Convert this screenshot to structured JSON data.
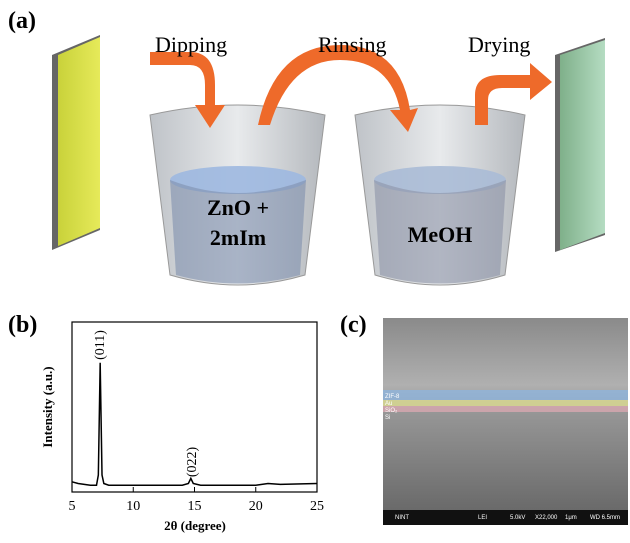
{
  "panel_a": {
    "label": "(a)",
    "steps": [
      "Dipping",
      "Rinsing",
      "Drying"
    ],
    "beaker_1_lines": [
      "ZnO +",
      "2mIm"
    ],
    "beaker_2_label": "MeOH"
  },
  "chart_data": {
    "type": "line",
    "panel_label": "(b)",
    "xlabel": "2θ (degree)",
    "ylabel": "Intensity (a.u.)",
    "x": [
      5,
      5.5,
      6,
      6.5,
      7,
      7.15,
      7.3,
      7.45,
      7.6,
      8,
      9,
      10,
      12,
      14,
      14.5,
      14.7,
      14.9,
      15.5,
      18,
      20,
      21,
      22,
      25
    ],
    "values": [
      6,
      5,
      4.5,
      4,
      4,
      10,
      76,
      10,
      5,
      4,
      4,
      4,
      4,
      4,
      5,
      8,
      5,
      4,
      4,
      4,
      5,
      4.5,
      5
    ],
    "color": "#000000",
    "xlim": [
      5,
      25
    ],
    "xticks": [
      5,
      10,
      15,
      20,
      25
    ],
    "ylim": [
      0,
      100
    ],
    "annotations": [
      "(011)",
      "(022)"
    ]
  },
  "panel_c": {
    "label": "(c)",
    "layers": [
      "ZIF-8",
      "Au",
      "SiO₂",
      "Si"
    ],
    "footer": [
      "NINT",
      "LEI",
      "5.0kV",
      "X22,000",
      "1μm",
      "WD 6.5mm"
    ]
  }
}
